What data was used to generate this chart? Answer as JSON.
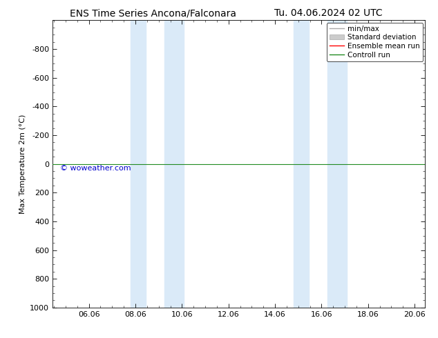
{
  "title_left": "ENS Time Series Ancona/Falconara",
  "title_right": "Tu. 04.06.2024 02 UTC",
  "ylabel": "Max Temperature 2m (°C)",
  "xlim": [
    4.5,
    20.5
  ],
  "ylim": [
    1000,
    -1000
  ],
  "yticks": [
    -800,
    -600,
    -400,
    -200,
    0,
    200,
    400,
    600,
    800,
    1000
  ],
  "xticks": [
    6.06,
    8.06,
    10.06,
    12.06,
    14.06,
    16.06,
    18.06,
    20.06
  ],
  "xtick_labels": [
    "06.06",
    "08.06",
    "10.06",
    "12.06",
    "14.06",
    "16.06",
    "18.06",
    "20.06"
  ],
  "shaded_bands": [
    [
      7.85,
      8.5
    ],
    [
      9.3,
      10.15
    ],
    [
      14.85,
      15.5
    ],
    [
      16.3,
      17.15
    ]
  ],
  "shade_color": "#daeaf8",
  "control_run_y": 0,
  "control_run_color": "#228B22",
  "ensemble_mean_color": "#FF0000",
  "bg_color": "#ffffff",
  "watermark": "© woweather.com",
  "watermark_color": "#0000CC",
  "legend_items": [
    {
      "label": "min/max",
      "color": "#aaaaaa",
      "type": "line"
    },
    {
      "label": "Standard deviation",
      "color": "#c8dff0",
      "type": "patch"
    },
    {
      "label": "Ensemble mean run",
      "color": "#FF0000",
      "type": "line"
    },
    {
      "label": "Controll run",
      "color": "#228B22",
      "type": "line"
    }
  ],
  "font_size_title": 10,
  "font_size_axis": 8,
  "font_size_legend": 7.5,
  "font_size_watermark": 8,
  "font_size_ylabel": 8
}
